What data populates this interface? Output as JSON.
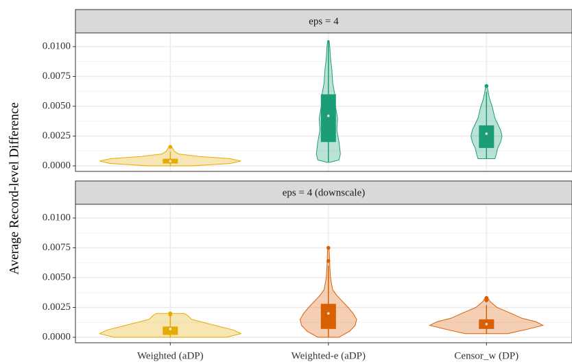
{
  "chart_data": {
    "type": "violin",
    "y_label": "Average Record-level Difference",
    "categories": [
      "Weighted (aDP)",
      "Weighted-e (aDP)",
      "Censor_w (DP)"
    ],
    "ylim": [
      -0.00046,
      0.01115
    ],
    "yticks": [
      {
        "value": 0,
        "label": "0.0000"
      },
      {
        "value": 0.0025,
        "label": "0.0025"
      },
      {
        "value": 0.005,
        "label": "0.0050"
      },
      {
        "value": 0.0075,
        "label": "0.0075"
      },
      {
        "value": 0.01,
        "label": "0.0100"
      }
    ],
    "grid": true,
    "panels": [
      {
        "title": "eps = 4",
        "violins": [
          {
            "color": "#e6ab02",
            "q1": 0.0002,
            "median": 0.0004,
            "q3": 0.0006,
            "whisker_low": 0,
            "whisker_high": 0.0012,
            "outliers": [
              0.0016
            ],
            "density_y": [
              0,
              0.0002,
              0.0004,
              0.0006,
              0.0008,
              0.001,
              0.0012,
              0.0014,
              0.0016
            ],
            "density": [
              0.3,
              0.85,
              1.0,
              0.85,
              0.4,
              0.12,
              0.06,
              0.04,
              0.02
            ]
          },
          {
            "color": "#1b9e77",
            "q1": 0.002,
            "median": 0.0042,
            "q3": 0.006,
            "whisker_low": 0.0003,
            "whisker_high": 0.0105,
            "outliers": [],
            "density_y": [
              0.0003,
              0.0005,
              0.001,
              0.002,
              0.003,
              0.004,
              0.005,
              0.006,
              0.007,
              0.008,
              0.009,
              0.01,
              0.0105
            ],
            "density": [
              0.02,
              0.15,
              0.17,
              0.15,
              0.12,
              0.13,
              0.1,
              0.09,
              0.06,
              0.05,
              0.03,
              0.02,
              0.01
            ]
          },
          {
            "color": "#1b9e77",
            "q1": 0.0015,
            "median": 0.0027,
            "q3": 0.0034,
            "whisker_low": 0.0006,
            "whisker_high": 0.0062,
            "outliers": [
              0.0067
            ],
            "density_y": [
              0.0006,
              0.001,
              0.0015,
              0.002,
              0.0025,
              0.003,
              0.0035,
              0.004,
              0.0045,
              0.005,
              0.0055,
              0.006,
              0.0067
            ],
            "density": [
              0.12,
              0.14,
              0.16,
              0.2,
              0.22,
              0.2,
              0.16,
              0.12,
              0.1,
              0.08,
              0.05,
              0.03,
              0.01
            ]
          }
        ]
      },
      {
        "title": "eps = 4 (downscale)",
        "violins": [
          {
            "color": "#e6ab02",
            "q1": 0.0002,
            "median": 0.0007,
            "q3": 0.0009,
            "whisker_low": 0,
            "whisker_high": 0.0018,
            "outliers": [
              0.0019,
              0.002
            ],
            "density_y": [
              0,
              0.0003,
              0.0006,
              0.0009,
              0.0012,
              0.0015,
              0.0018,
              0.002
            ],
            "density": [
              0.8,
              1.0,
              0.9,
              0.7,
              0.5,
              0.3,
              0.25,
              0.2
            ]
          },
          {
            "color": "#d95f02",
            "q1": 0.0007,
            "median": 0.002,
            "q3": 0.0028,
            "whisker_low": 0,
            "whisker_high": 0.006,
            "outliers": [
              0.0064,
              0.0075
            ],
            "density_y": [
              0,
              0.0005,
              0.001,
              0.0015,
              0.002,
              0.0025,
              0.003,
              0.0035,
              0.004,
              0.005,
              0.006,
              0.0075
            ],
            "density": [
              0.15,
              0.3,
              0.38,
              0.4,
              0.35,
              0.28,
              0.2,
              0.12,
              0.06,
              0.03,
              0.02,
              0.01
            ]
          },
          {
            "color": "#d95f02",
            "q1": 0.0007,
            "median": 0.0011,
            "q3": 0.0015,
            "whisker_low": 0.0003,
            "whisker_high": 0.0027,
            "outliers": [
              0.0031,
              0.0033
            ],
            "density_y": [
              0.0003,
              0.0007,
              0.001,
              0.0013,
              0.0016,
              0.002,
              0.0025,
              0.003,
              0.0033
            ],
            "density": [
              0.3,
              0.6,
              0.8,
              0.7,
              0.5,
              0.35,
              0.15,
              0.05,
              0.02
            ]
          }
        ]
      }
    ]
  }
}
